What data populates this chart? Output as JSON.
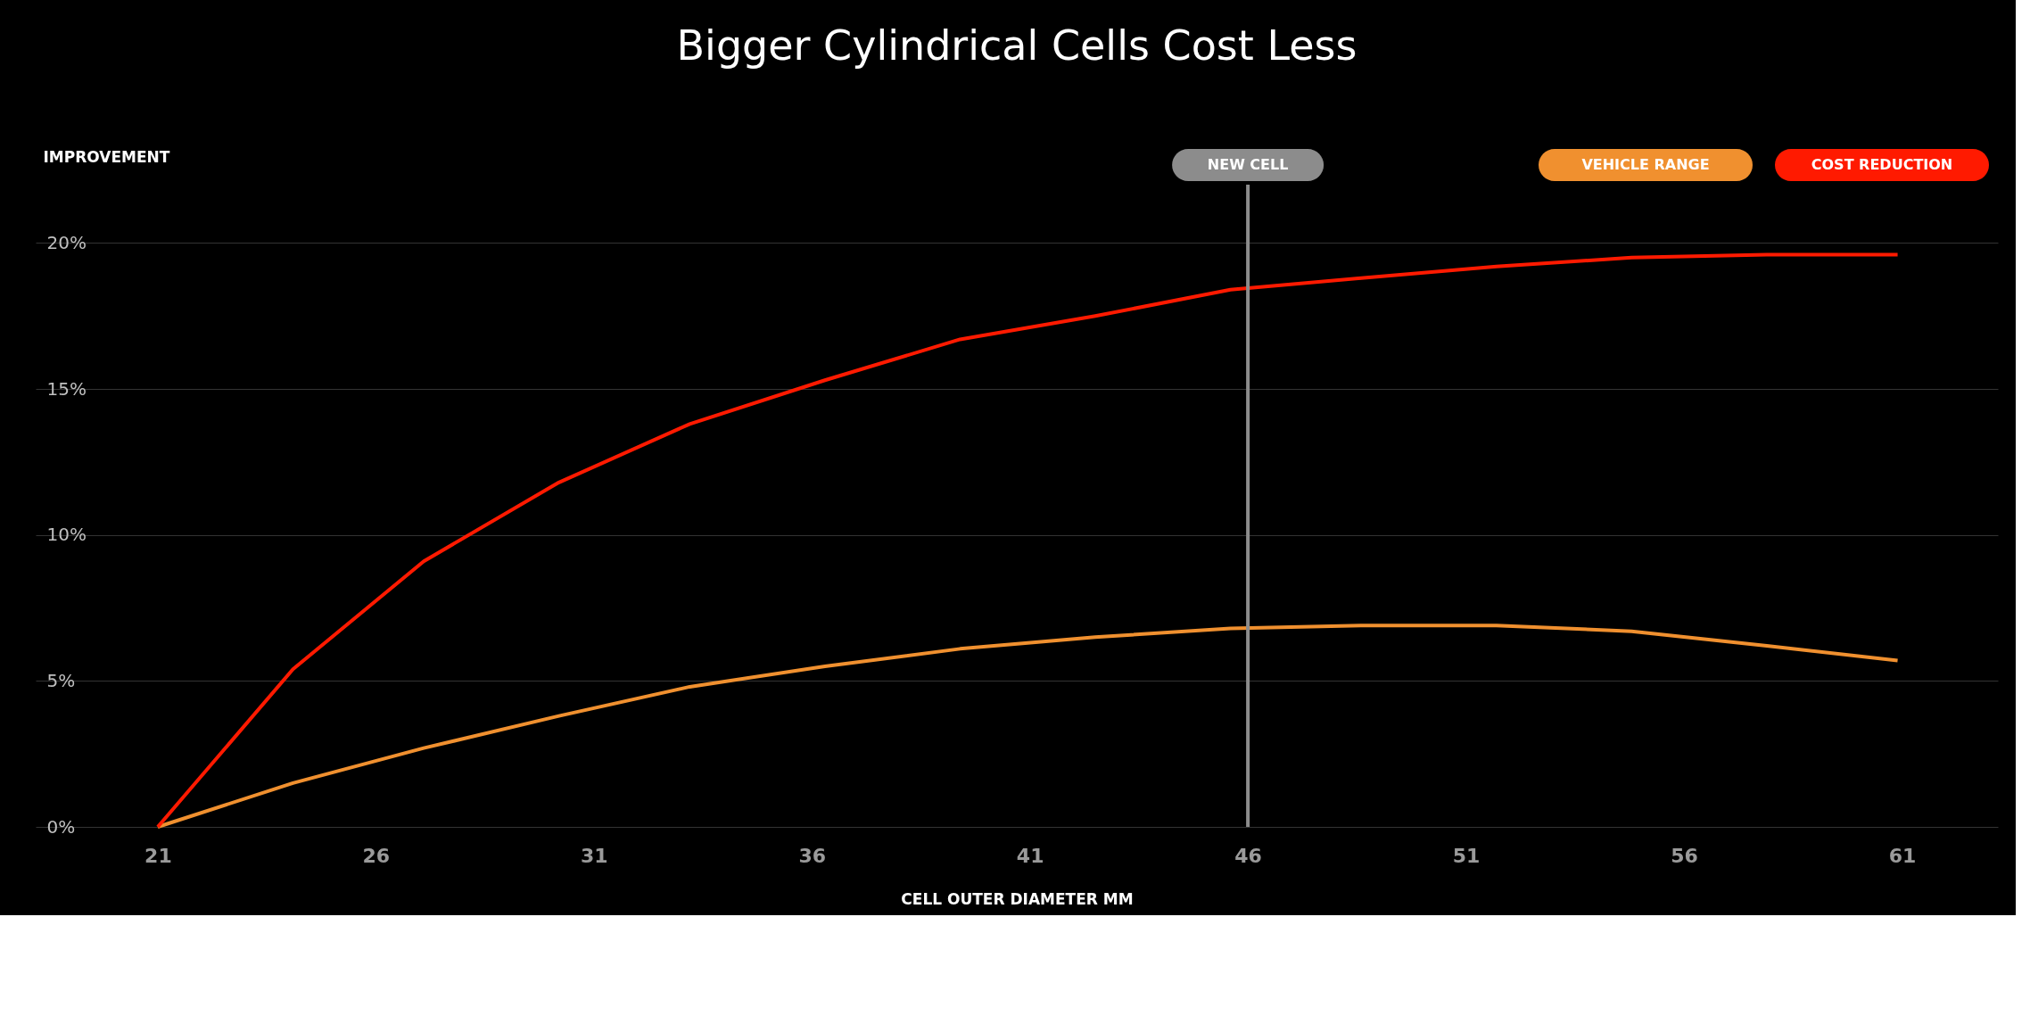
{
  "chart_data": {
    "type": "line",
    "title": "Bigger Cylindrical Cells Cost Less",
    "xlabel": "CELL OUTER DIAMETER  MM",
    "ylabel": "IMPROVEMENT",
    "xlim": [
      18.2,
      63.2
    ],
    "xticks": [
      21,
      26,
      31,
      36,
      41,
      46,
      51,
      56,
      61
    ],
    "ylim": [
      0,
      22
    ],
    "yticks": [
      {
        "value": 0,
        "label": "0%"
      },
      {
        "value": 5,
        "label": "5%"
      },
      {
        "value": 10,
        "label": "10%"
      },
      {
        "value": 15,
        "label": "15%"
      },
      {
        "value": 20,
        "label": "20%"
      }
    ],
    "grid": "y",
    "legend": "top right",
    "series": [
      {
        "name": "VEHICLE RANGE",
        "color": "#f0902f",
        "x": [
          21,
          24.1,
          27.1,
          30.2,
          33.2,
          36.3,
          39.4,
          42.5,
          45.6,
          48.6,
          51.7,
          54.8,
          57.9,
          60.9
        ],
        "values": [
          0,
          1.5,
          2.7,
          3.8,
          4.8,
          5.5,
          6.1,
          6.5,
          6.8,
          6.9,
          6.9,
          6.7,
          6.2,
          5.7
        ]
      },
      {
        "name": "COST REDUCTION",
        "color": "#ff1a00",
        "x": [
          21,
          24.1,
          27.1,
          30.2,
          33.2,
          36.3,
          39.4,
          42.5,
          45.6,
          48.6,
          51.7,
          54.8,
          57.9,
          60.9
        ],
        "values": [
          0,
          5.4,
          9.1,
          11.8,
          13.8,
          15.3,
          16.7,
          17.5,
          18.4,
          18.8,
          19.2,
          19.5,
          19.6,
          19.6
        ]
      }
    ],
    "ref_lines": [
      {
        "axis": "x",
        "value": 46,
        "label": "NEW CELL",
        "color": "#8c8c8c"
      }
    ]
  }
}
